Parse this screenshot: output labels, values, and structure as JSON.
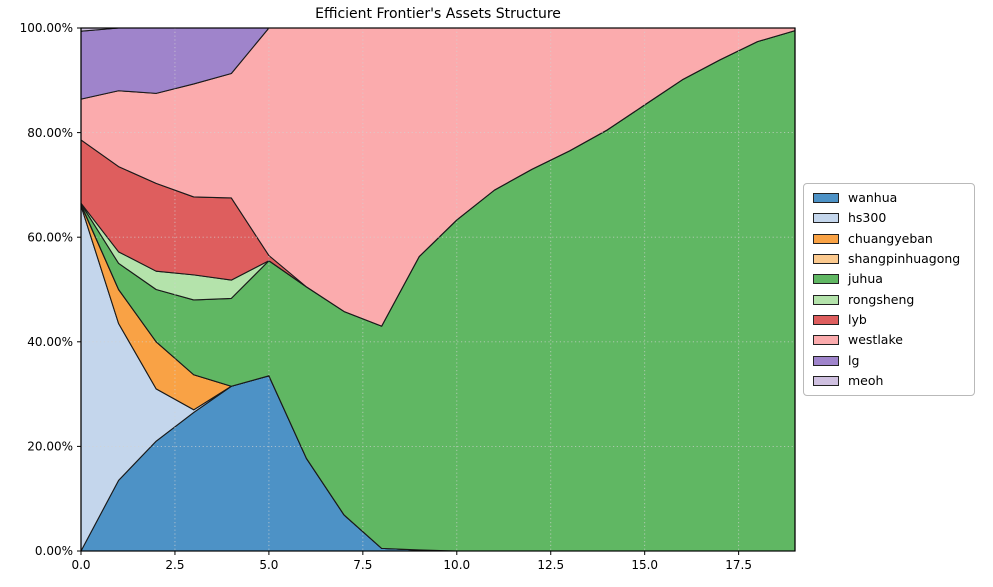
{
  "title": "Efficient Frontier's Assets Structure",
  "chart_data": {
    "type": "area",
    "stacked": true,
    "title": "Efficient Frontier's Assets Structure",
    "xlabel": "",
    "ylabel": "",
    "xlim": [
      0,
      19
    ],
    "ylim": [
      0,
      100
    ],
    "grid": true,
    "grid_style": "dotted",
    "legend_position": "center-right-outside",
    "edge_color": "#1a1a1a",
    "x": [
      0,
      1,
      2,
      3,
      4,
      5,
      6,
      7,
      8,
      9,
      10,
      11,
      12,
      13,
      14,
      15,
      16,
      17,
      18,
      19
    ],
    "xticks": {
      "values": [
        0,
        2.5,
        5,
        7.5,
        10,
        12.5,
        15,
        17.5
      ],
      "labels": [
        "0.0",
        "2.5",
        "5.0",
        "7.5",
        "10.0",
        "12.5",
        "15.0",
        "17.5"
      ]
    },
    "yticks": {
      "values": [
        0,
        20,
        40,
        60,
        80,
        100
      ],
      "labels": [
        "0.00%",
        "20.00%",
        "40.00%",
        "60.00%",
        "80.00%",
        "100.00%"
      ]
    },
    "series": [
      {
        "name": "wanhua",
        "color": "#4d92c6",
        "values": [
          0,
          13.5,
          21,
          26.5,
          31.5,
          33.5,
          17.7,
          6.9,
          0.5,
          0.2,
          0,
          0,
          0,
          0,
          0,
          0,
          0,
          0,
          0,
          0
        ]
      },
      {
        "name": "hs300",
        "color": "#c4d6ec",
        "values": [
          66,
          30,
          10,
          0.5,
          0,
          0,
          0,
          0,
          0,
          0,
          0,
          0,
          0,
          0,
          0,
          0,
          0,
          0,
          0,
          0
        ]
      },
      {
        "name": "chuangyeban",
        "color": "#f9a245",
        "values": [
          0.2,
          6.5,
          9,
          6.7,
          0,
          0,
          0,
          0,
          0,
          0,
          0,
          0,
          0,
          0,
          0,
          0,
          0,
          0,
          0,
          0
        ]
      },
      {
        "name": "shangpinhuagong",
        "color": "#fbc98e",
        "values": [
          0.1,
          0,
          0,
          0,
          0,
          0,
          0,
          0,
          0,
          0,
          0,
          0,
          0,
          0,
          0,
          0,
          0,
          0,
          0,
          0
        ]
      },
      {
        "name": "juhua",
        "color": "#60b763",
        "values": [
          0.1,
          5,
          10,
          14.3,
          16.8,
          22,
          32.8,
          38.9,
          42.5,
          56.1,
          63.3,
          69,
          73,
          76.5,
          80.5,
          85.3,
          90.1,
          93.9,
          97.4,
          99.5
        ]
      },
      {
        "name": "rongsheng",
        "color": "#b4e3ab",
        "values": [
          0.1,
          2.2,
          3.5,
          4.8,
          3.5,
          0,
          0,
          0,
          0,
          0,
          0,
          0,
          0,
          0,
          0,
          0,
          0,
          0,
          0,
          0
        ]
      },
      {
        "name": "lyb",
        "color": "#de5e5e",
        "values": [
          12.1,
          16.3,
          16.8,
          14.9,
          15.7,
          1,
          0,
          0,
          0,
          0,
          0,
          0,
          0,
          0,
          0,
          0,
          0,
          0,
          0,
          0
        ]
      },
      {
        "name": "westlake",
        "color": "#fbabad",
        "values": [
          7.8,
          14.5,
          17.2,
          21.6,
          23.8,
          43.5,
          49.5,
          54.2,
          57,
          43.7,
          36.7,
          31,
          27,
          23.5,
          19.5,
          14.7,
          9.9,
          6.1,
          2.6,
          0.5
        ]
      },
      {
        "name": "lg",
        "color": "#9f84cb",
        "values": [
          13,
          12,
          12.5,
          10.7,
          8.7,
          0,
          0,
          0,
          0,
          0,
          0,
          0,
          0,
          0,
          0,
          0,
          0,
          0,
          0,
          0
        ]
      },
      {
        "name": "meoh",
        "color": "#cfc0e0",
        "values": [
          0.6,
          0,
          0,
          0,
          0,
          0,
          0,
          0,
          0,
          0,
          0,
          0,
          0,
          0,
          0,
          0,
          0,
          0,
          0,
          0
        ]
      }
    ]
  }
}
